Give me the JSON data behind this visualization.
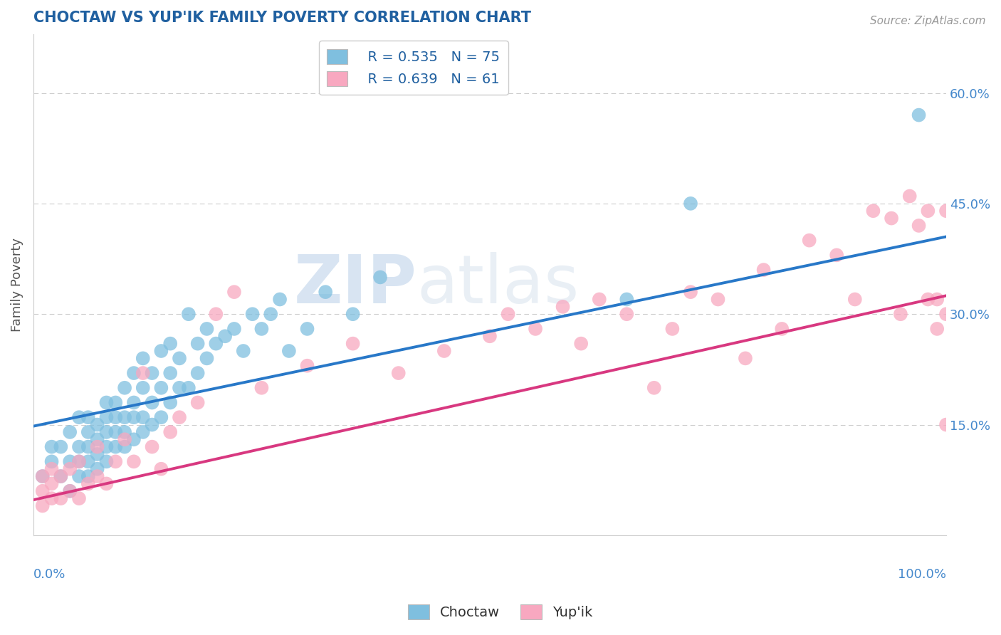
{
  "title": "CHOCTAW VS YUP'IK FAMILY POVERTY CORRELATION CHART",
  "source_text": "Source: ZipAtlas.com",
  "ylabel": "Family Poverty",
  "y_ticks": [
    0.15,
    0.3,
    0.45,
    0.6
  ],
  "y_tick_labels": [
    "15.0%",
    "30.0%",
    "45.0%",
    "60.0%"
  ],
  "x_range": [
    0.0,
    1.0
  ],
  "y_range": [
    0.0,
    0.68
  ],
  "choctaw_color": "#7fbfdf",
  "yupik_color": "#f8a8c0",
  "choctaw_line_color": "#2878c8",
  "yupik_line_color": "#d83880",
  "legend_R_choctaw": "R = 0.535",
  "legend_N_choctaw": "N = 75",
  "legend_R_yupik": "R = 0.639",
  "legend_N_yupik": "N = 61",
  "watermark_zip": "ZIP",
  "watermark_atlas": "atlas",
  "background_color": "#ffffff",
  "grid_color": "#cccccc",
  "title_color": "#2060a0",
  "axis_label_color": "#4488cc",
  "choctaw_x": [
    0.01,
    0.02,
    0.02,
    0.03,
    0.03,
    0.04,
    0.04,
    0.04,
    0.05,
    0.05,
    0.05,
    0.05,
    0.06,
    0.06,
    0.06,
    0.06,
    0.06,
    0.07,
    0.07,
    0.07,
    0.07,
    0.08,
    0.08,
    0.08,
    0.08,
    0.08,
    0.09,
    0.09,
    0.09,
    0.09,
    0.1,
    0.1,
    0.1,
    0.1,
    0.11,
    0.11,
    0.11,
    0.11,
    0.12,
    0.12,
    0.12,
    0.12,
    0.13,
    0.13,
    0.13,
    0.14,
    0.14,
    0.14,
    0.15,
    0.15,
    0.15,
    0.16,
    0.16,
    0.17,
    0.17,
    0.18,
    0.18,
    0.19,
    0.19,
    0.2,
    0.21,
    0.22,
    0.23,
    0.24,
    0.25,
    0.26,
    0.27,
    0.28,
    0.3,
    0.32,
    0.35,
    0.38,
    0.65,
    0.72,
    0.97
  ],
  "choctaw_y": [
    0.08,
    0.1,
    0.12,
    0.08,
    0.12,
    0.06,
    0.1,
    0.14,
    0.08,
    0.1,
    0.12,
    0.16,
    0.08,
    0.1,
    0.12,
    0.14,
    0.16,
    0.09,
    0.11,
    0.13,
    0.15,
    0.1,
    0.12,
    0.14,
    0.16,
    0.18,
    0.12,
    0.14,
    0.16,
    0.18,
    0.12,
    0.14,
    0.16,
    0.2,
    0.13,
    0.16,
    0.18,
    0.22,
    0.14,
    0.16,
    0.2,
    0.24,
    0.15,
    0.18,
    0.22,
    0.16,
    0.2,
    0.25,
    0.18,
    0.22,
    0.26,
    0.2,
    0.24,
    0.2,
    0.3,
    0.22,
    0.26,
    0.24,
    0.28,
    0.26,
    0.27,
    0.28,
    0.25,
    0.3,
    0.28,
    0.3,
    0.32,
    0.25,
    0.28,
    0.33,
    0.3,
    0.35,
    0.32,
    0.45,
    0.57
  ],
  "yupik_x": [
    0.01,
    0.01,
    0.01,
    0.02,
    0.02,
    0.02,
    0.03,
    0.03,
    0.04,
    0.04,
    0.05,
    0.05,
    0.06,
    0.07,
    0.07,
    0.08,
    0.09,
    0.1,
    0.11,
    0.12,
    0.13,
    0.14,
    0.15,
    0.16,
    0.18,
    0.2,
    0.22,
    0.25,
    0.3,
    0.35,
    0.4,
    0.45,
    0.5,
    0.52,
    0.55,
    0.58,
    0.6,
    0.62,
    0.65,
    0.68,
    0.7,
    0.72,
    0.75,
    0.78,
    0.8,
    0.82,
    0.85,
    0.88,
    0.9,
    0.92,
    0.94,
    0.95,
    0.96,
    0.97,
    0.98,
    0.98,
    0.99,
    0.99,
    1.0,
    1.0,
    1.0
  ],
  "yupik_y": [
    0.04,
    0.06,
    0.08,
    0.05,
    0.07,
    0.09,
    0.05,
    0.08,
    0.06,
    0.09,
    0.05,
    0.1,
    0.07,
    0.08,
    0.12,
    0.07,
    0.1,
    0.13,
    0.1,
    0.22,
    0.12,
    0.09,
    0.14,
    0.16,
    0.18,
    0.3,
    0.33,
    0.2,
    0.23,
    0.26,
    0.22,
    0.25,
    0.27,
    0.3,
    0.28,
    0.31,
    0.26,
    0.32,
    0.3,
    0.2,
    0.28,
    0.33,
    0.32,
    0.24,
    0.36,
    0.28,
    0.4,
    0.38,
    0.32,
    0.44,
    0.43,
    0.3,
    0.46,
    0.42,
    0.32,
    0.44,
    0.28,
    0.32,
    0.15,
    0.3,
    0.44
  ],
  "choctaw_line_start_y": 0.148,
  "choctaw_line_end_y": 0.405,
  "yupik_line_start_y": 0.048,
  "yupik_line_end_y": 0.325
}
